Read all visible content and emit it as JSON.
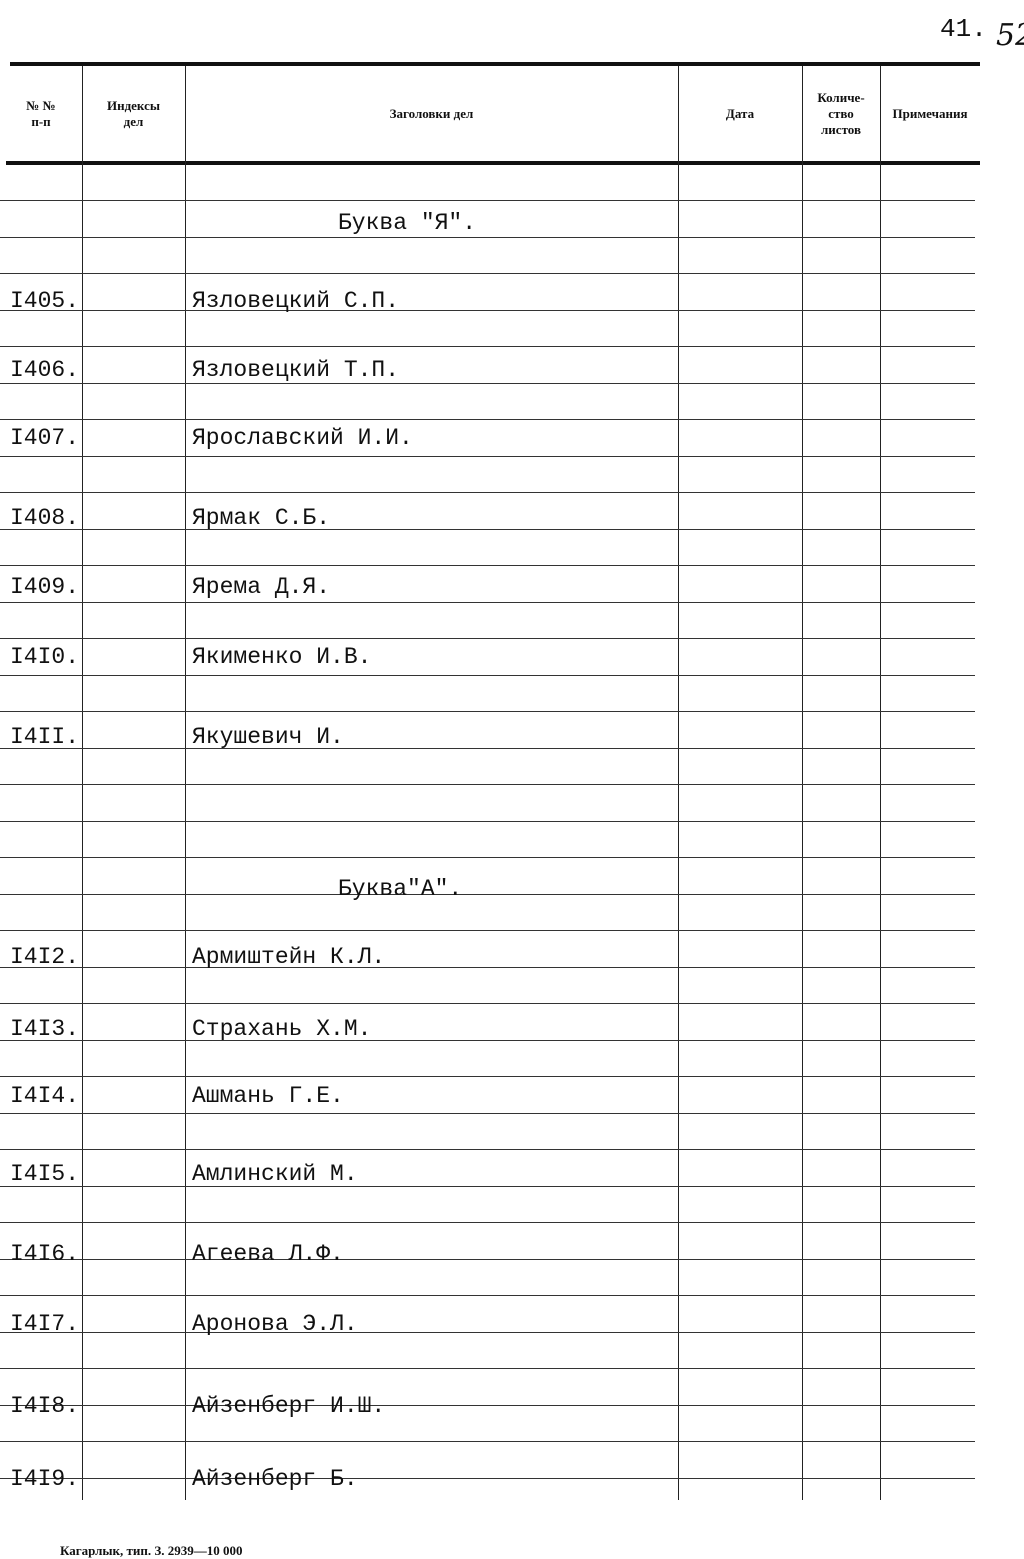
{
  "page_number": "41.",
  "sheet_number": "52",
  "table": {
    "headers": [
      [
        "№ №",
        "п-п"
      ],
      [
        "Индексы",
        "дел"
      ],
      [
        "Заголовки дел"
      ],
      [
        "Дата"
      ],
      [
        "Количе-",
        "ство",
        "листов"
      ],
      [
        "Примечания"
      ]
    ],
    "rows": [
      {
        "title": "Буква \"Я\"."
      },
      {
        "number": "I405.",
        "title": "Язловецкий С.П."
      },
      {
        "number": "I406.",
        "title": "Язловецкий Т.П."
      },
      {
        "number": "I407.",
        "title": "Ярославский И.И."
      },
      {
        "number": "I408.",
        "title": "Ярмак С.Б."
      },
      {
        "number": "I409.",
        "title": "Ярема Д.Я."
      },
      {
        "number": "I4I0.",
        "title": "Якименко И.В."
      },
      {
        "number": "I4II.",
        "title": "Якушевич И."
      },
      {
        "title": "Буква\"А\"."
      },
      {
        "number": "I4I2.",
        "title": "Армиштейн К.Л."
      },
      {
        "number": "I4I3.",
        "title": "Страхань Х.М."
      },
      {
        "number": "I4I4.",
        "title": "Ашмань Г.Е."
      },
      {
        "number": "I4I5.",
        "title": "Амлинский М."
      },
      {
        "number": "I4I6.",
        "title": "Агеева Л.Ф."
      },
      {
        "number": "I4I7.",
        "title": "Аронова Э.Л."
      },
      {
        "number": "I4I8.",
        "title": "Айзенберг И.Ш."
      },
      {
        "number": "I4I9.",
        "title": "Айзенберг Б."
      }
    ]
  },
  "footer": "Кагарлык, тип. З. 2939—10 000"
}
